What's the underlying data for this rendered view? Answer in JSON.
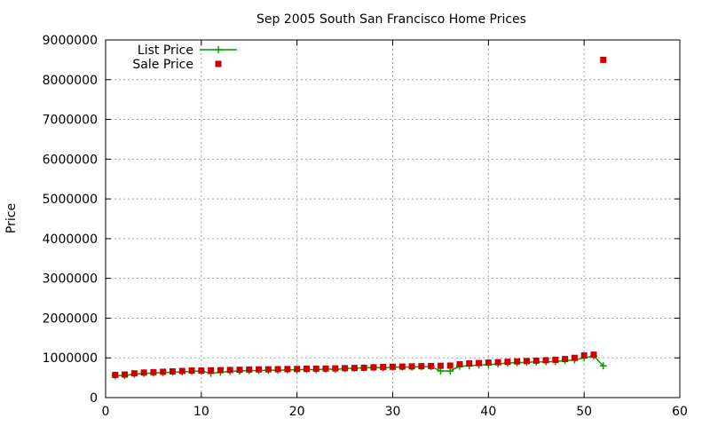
{
  "chart_data": {
    "type": "line",
    "title": "Sep 2005 South San Francisco Home Prices",
    "xlabel": "",
    "ylabel": "Price",
    "xlim": [
      0,
      60
    ],
    "ylim": [
      0,
      9000000
    ],
    "x_ticks": [
      0,
      10,
      20,
      30,
      40,
      50,
      60
    ],
    "y_ticks": [
      0,
      1000000,
      2000000,
      3000000,
      4000000,
      5000000,
      6000000,
      7000000,
      8000000,
      9000000
    ],
    "grid": true,
    "legend_position": "top-left",
    "series": [
      {
        "name": "List Price",
        "style": "line+cross",
        "color": "#00a000",
        "x": [
          1,
          2,
          3,
          4,
          5,
          6,
          7,
          8,
          9,
          10,
          11,
          12,
          13,
          14,
          15,
          16,
          17,
          18,
          19,
          20,
          21,
          22,
          23,
          24,
          25,
          26,
          27,
          28,
          29,
          30,
          31,
          32,
          33,
          34,
          35,
          36,
          37,
          38,
          39,
          40,
          41,
          42,
          43,
          44,
          45,
          46,
          47,
          48,
          49,
          50,
          51,
          52
        ],
        "y": [
          549000,
          559000,
          589000,
          609000,
          619000,
          629000,
          639000,
          649000,
          659000,
          669000,
          609000,
          639000,
          659000,
          669000,
          679000,
          679000,
          689000,
          689000,
          699000,
          699000,
          709000,
          699000,
          719000,
          709000,
          729000,
          739000,
          749000,
          759000,
          749000,
          769000,
          769000,
          769000,
          779000,
          779000,
          669000,
          669000,
          789000,
          799000,
          819000,
          829000,
          849000,
          869000,
          879000,
          889000,
          899000,
          899000,
          909000,
          929000,
          949000,
          999000,
          1049000,
          799000
        ]
      },
      {
        "name": "Sale Price",
        "style": "points",
        "color": "#cc0000",
        "x": [
          1,
          2,
          3,
          4,
          5,
          6,
          7,
          8,
          9,
          10,
          11,
          12,
          13,
          14,
          15,
          16,
          17,
          18,
          19,
          20,
          21,
          22,
          23,
          24,
          25,
          26,
          27,
          28,
          29,
          30,
          31,
          32,
          33,
          34,
          35,
          36,
          37,
          38,
          39,
          40,
          41,
          42,
          43,
          44,
          45,
          46,
          47,
          48,
          49,
          50,
          51,
          52
        ],
        "y": [
          570000,
          580000,
          610000,
          630000,
          640000,
          650000,
          660000,
          670000,
          680000,
          680000,
          685000,
          690000,
          695000,
          700000,
          705000,
          710000,
          712000,
          715000,
          718000,
          720000,
          725000,
          728000,
          730000,
          735000,
          740000,
          745000,
          750000,
          760000,
          770000,
          775000,
          780000,
          785000,
          790000,
          795000,
          800000,
          805000,
          840000,
          860000,
          870000,
          880000,
          890000,
          900000,
          910000,
          920000,
          930000,
          940000,
          950000,
          970000,
          1000000,
          1060000,
          1080000,
          8500000
        ]
      }
    ]
  }
}
